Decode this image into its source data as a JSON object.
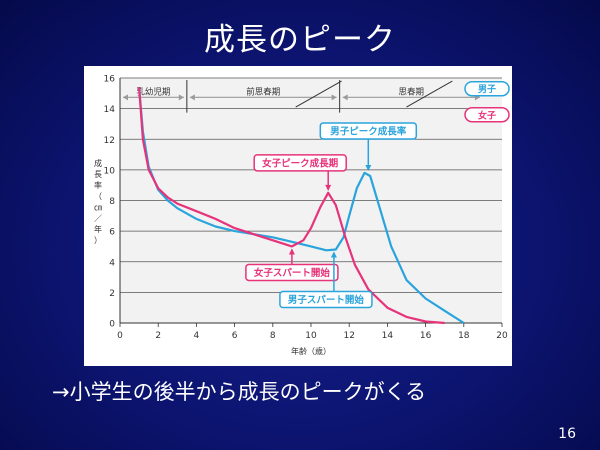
{
  "slide": {
    "title": "成長のピーク",
    "caption": "→小学生の後半から成長のピークがくる",
    "page_number": "16"
  },
  "colors": {
    "boys": "#2aa4dc",
    "girls": "#e6337a",
    "bands": "#9a9a9a",
    "axis": "#333333"
  },
  "chart_data": {
    "type": "line",
    "xlabel": "年齢（歳）",
    "ylabel": "成長率（㎝／年）",
    "xlim": [
      0,
      20
    ],
    "ylim": [
      0,
      16
    ],
    "x_ticks": [
      0,
      2,
      4,
      6,
      8,
      10,
      12,
      14,
      16,
      18,
      20
    ],
    "y_ticks": [
      0,
      2,
      4,
      6,
      8,
      10,
      12,
      14,
      16
    ],
    "grid": true,
    "series": [
      {
        "name": "男子",
        "color_key": "boys",
        "points": [
          [
            1.0,
            15.4
          ],
          [
            1.2,
            12.5
          ],
          [
            1.5,
            10.2
          ],
          [
            2.0,
            8.7
          ],
          [
            2.5,
            8.0
          ],
          [
            3.0,
            7.5
          ],
          [
            4.0,
            6.8
          ],
          [
            5.0,
            6.3
          ],
          [
            6.0,
            6.0
          ],
          [
            7.0,
            5.8
          ],
          [
            8.0,
            5.6
          ],
          [
            9.0,
            5.3
          ],
          [
            10.0,
            5.0
          ],
          [
            10.8,
            4.75
          ],
          [
            11.3,
            4.8
          ],
          [
            11.7,
            5.6
          ],
          [
            12.0,
            7.0
          ],
          [
            12.4,
            8.8
          ],
          [
            12.8,
            9.8
          ],
          [
            13.1,
            9.6
          ],
          [
            13.6,
            7.5
          ],
          [
            14.2,
            5.0
          ],
          [
            15.0,
            2.8
          ],
          [
            16.0,
            1.6
          ],
          [
            17.0,
            0.8
          ],
          [
            18.0,
            0.0
          ]
        ]
      },
      {
        "name": "女子",
        "color_key": "girls",
        "points": [
          [
            1.0,
            15.4
          ],
          [
            1.2,
            12.0
          ],
          [
            1.5,
            10.0
          ],
          [
            2.0,
            8.8
          ],
          [
            2.5,
            8.2
          ],
          [
            3.0,
            7.8
          ],
          [
            4.0,
            7.3
          ],
          [
            5.0,
            6.8
          ],
          [
            6.0,
            6.2
          ],
          [
            7.0,
            5.8
          ],
          [
            8.0,
            5.4
          ],
          [
            9.0,
            5.0
          ],
          [
            9.6,
            5.4
          ],
          [
            10.0,
            6.2
          ],
          [
            10.5,
            7.6
          ],
          [
            10.9,
            8.5
          ],
          [
            11.3,
            7.7
          ],
          [
            11.8,
            5.6
          ],
          [
            12.3,
            3.8
          ],
          [
            13.0,
            2.2
          ],
          [
            14.0,
            1.0
          ],
          [
            15.0,
            0.4
          ],
          [
            16.0,
            0.1
          ],
          [
            17.0,
            0.0
          ]
        ]
      }
    ],
    "period_bands": [
      {
        "label": "乳幼児期",
        "start": 0,
        "end": 3.5
      },
      {
        "label": "前思春期",
        "start": 3.5,
        "end": 11.5
      },
      {
        "label": "思春期",
        "start": 11.5,
        "end": 19.0
      }
    ],
    "band_legend": [
      "男子",
      "女子"
    ],
    "annotations": [
      {
        "text": "男子ピーク成長率",
        "color_key": "boys",
        "x": 13.0,
        "y": 9.8
      },
      {
        "text": "女子ピーク成長期",
        "color_key": "girls",
        "x": 10.9,
        "y": 8.5
      },
      {
        "text": "女子スパート開始",
        "color_key": "girls",
        "x": 9.0,
        "y": 5.0
      },
      {
        "text": "男子スパート開始",
        "color_key": "boys",
        "x": 11.2,
        "y": 4.8
      }
    ]
  }
}
